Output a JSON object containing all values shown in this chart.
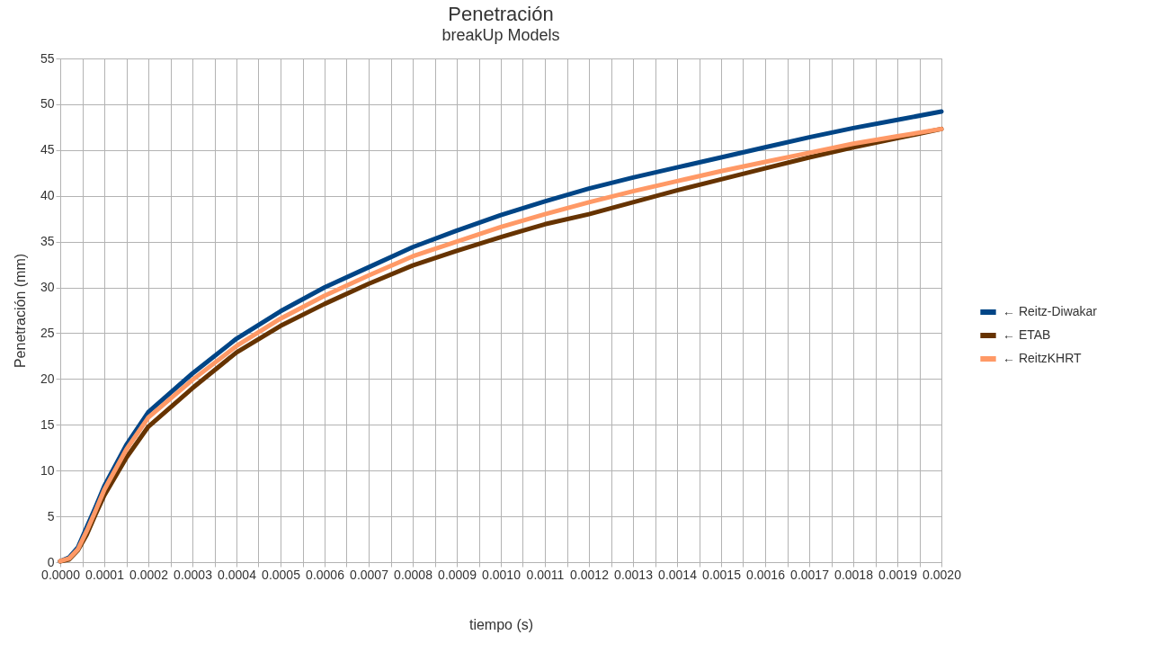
{
  "chart_data": {
    "type": "line",
    "title": "Penetración",
    "subtitle": "breakUp Models",
    "xlabel": "tiempo (s)",
    "ylabel": "Penetración (mm)",
    "x": [
      0,
      2e-05,
      4e-05,
      6e-05,
      8e-05,
      0.0001,
      0.00015,
      0.0002,
      0.0003,
      0.0004,
      0.0005,
      0.0006,
      0.0007,
      0.0008,
      0.0009,
      0.001,
      0.0011,
      0.0012,
      0.0013,
      0.0014,
      0.0015,
      0.0016,
      0.0017,
      0.0018,
      0.0019,
      0.002
    ],
    "series": [
      {
        "name": "← Reitz-Diwakar",
        "color": "#004586",
        "values": [
          0.1,
          0.5,
          1.6,
          3.8,
          6.0,
          8.3,
          12.8,
          16.4,
          20.6,
          24.4,
          27.4,
          30.0,
          32.2,
          34.4,
          36.2,
          37.9,
          39.4,
          40.8,
          42.0,
          43.1,
          44.2,
          45.3,
          46.4,
          47.4,
          48.3,
          49.2
        ]
      },
      {
        "name": "← ETAB",
        "color": "#663300",
        "values": [
          0.1,
          0.3,
          1.3,
          3.0,
          5.2,
          7.3,
          11.4,
          14.8,
          19.0,
          22.9,
          25.8,
          28.2,
          30.4,
          32.4,
          34.0,
          35.5,
          36.9,
          38.0,
          39.3,
          40.6,
          41.8,
          43.0,
          44.2,
          45.3,
          46.3,
          47.3
        ]
      },
      {
        "name": "← ReitzKHRT",
        "color": "#ff9966",
        "values": [
          0.1,
          0.4,
          1.4,
          3.4,
          5.6,
          7.9,
          12.3,
          15.8,
          19.9,
          23.6,
          26.6,
          29.1,
          31.3,
          33.4,
          35.0,
          36.6,
          38.0,
          39.3,
          40.5,
          41.6,
          42.7,
          43.7,
          44.7,
          45.7,
          46.5,
          47.3
        ]
      }
    ],
    "xlim": [
      0,
      0.002
    ],
    "xticks": [
      {
        "value": 0,
        "label": "0.0000"
      },
      {
        "value": 5e-05,
        "label": null
      },
      {
        "value": 0.0001,
        "label": "0.0001"
      },
      {
        "value": 0.00015,
        "label": null
      },
      {
        "value": 0.0002,
        "label": "0.0002"
      },
      {
        "value": 0.00025,
        "label": null
      },
      {
        "value": 0.0003,
        "label": "0.0003"
      },
      {
        "value": 0.00035,
        "label": null
      },
      {
        "value": 0.0004,
        "label": "0.0004"
      },
      {
        "value": 0.00045,
        "label": null
      },
      {
        "value": 0.0005,
        "label": "0.0005"
      },
      {
        "value": 0.00055,
        "label": null
      },
      {
        "value": 0.0006,
        "label": "0.0006"
      },
      {
        "value": 0.00065,
        "label": null
      },
      {
        "value": 0.0007,
        "label": "0.0007"
      },
      {
        "value": 0.00075,
        "label": null
      },
      {
        "value": 0.0008,
        "label": "0.0008"
      },
      {
        "value": 0.00085,
        "label": null
      },
      {
        "value": 0.0009,
        "label": "0.0009"
      },
      {
        "value": 0.00095,
        "label": null
      },
      {
        "value": 0.001,
        "label": "0.0010"
      },
      {
        "value": 0.00105,
        "label": null
      },
      {
        "value": 0.0011,
        "label": "0.0011"
      },
      {
        "value": 0.00115,
        "label": null
      },
      {
        "value": 0.0012,
        "label": "0.0012"
      },
      {
        "value": 0.00125,
        "label": null
      },
      {
        "value": 0.0013,
        "label": "0.0013"
      },
      {
        "value": 0.00135,
        "label": null
      },
      {
        "value": 0.0014,
        "label": "0.0014"
      },
      {
        "value": 0.00145,
        "label": null
      },
      {
        "value": 0.0015,
        "label": "0.0015"
      },
      {
        "value": 0.00155,
        "label": null
      },
      {
        "value": 0.0016,
        "label": "0.0016"
      },
      {
        "value": 0.00165,
        "label": null
      },
      {
        "value": 0.0017,
        "label": "0.0017"
      },
      {
        "value": 0.00175,
        "label": null
      },
      {
        "value": 0.0018,
        "label": "0.0018"
      },
      {
        "value": 0.00185,
        "label": null
      },
      {
        "value": 0.0019,
        "label": "0.0019"
      },
      {
        "value": 0.00195,
        "label": null
      },
      {
        "value": 0.002,
        "label": "0.0020"
      }
    ],
    "ylim": [
      0,
      55
    ],
    "yticks": [
      0,
      5,
      10,
      15,
      20,
      25,
      30,
      35,
      40,
      45,
      50,
      55
    ],
    "grid": true,
    "legend": "right",
    "line_style": "solid"
  }
}
